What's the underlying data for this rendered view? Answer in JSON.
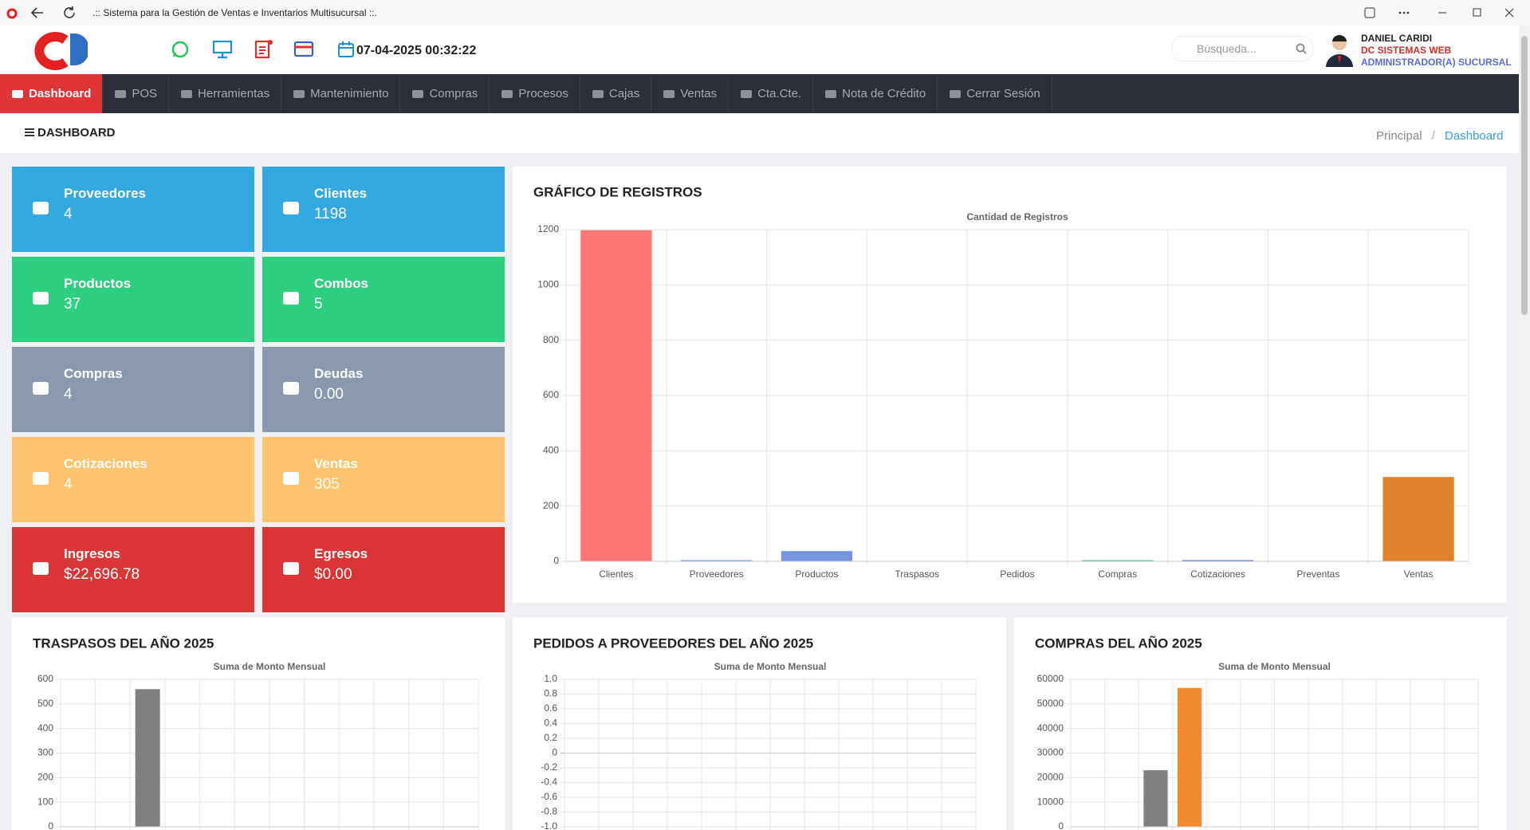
{
  "browser": {
    "title": ".:: Sistema para la Gestión de Ventas e Inventarios Multisucursal ::."
  },
  "header": {
    "datetime": "07-04-2025 00:32:22",
    "search_placeholder": "Búsqueda...",
    "user": {
      "name": "DANIEL CARIDI",
      "company": "DC SISTEMAS WEB",
      "role": "ADMINISTRADOR(A) SUCURSAL"
    }
  },
  "nav": [
    "Dashboard",
    "POS",
    "Herramientas",
    "Mantenimiento",
    "Compras",
    "Procesos",
    "Cajas",
    "Ventas",
    "Cta.Cte.",
    "Nota de Crédito",
    "Cerrar Sesión"
  ],
  "breadcrumb": {
    "page_title": "DASHBOARD",
    "items": [
      "Principal",
      "Dashboard"
    ]
  },
  "cards": [
    {
      "label": "Proveedores",
      "value": "4",
      "color": "#33a9e0"
    },
    {
      "label": "Clientes",
      "value": "1198",
      "color": "#33a9e0"
    },
    {
      "label": "Productos",
      "value": "37",
      "color": "#2ecf80"
    },
    {
      "label": "Combos",
      "value": "5",
      "color": "#2ecf80"
    },
    {
      "label": "Compras",
      "value": "4",
      "color": "#8a99ad"
    },
    {
      "label": "Deudas",
      "value": "0.00",
      "color": "#8a99ad"
    },
    {
      "label": "Cotizaciones",
      "value": "4",
      "color": "#fec46f"
    },
    {
      "label": "Ventas",
      "value": "305",
      "color": "#fec46f"
    },
    {
      "label": "Ingresos",
      "value": "$22,696.78",
      "color": "#dc3537"
    },
    {
      "label": "Egresos",
      "value": "$0.00",
      "color": "#dc3537"
    }
  ],
  "chart_data": [
    {
      "type": "bar",
      "title": "GRÁFICO DE REGISTROS",
      "subtitle": "Cantidad de Registros",
      "categories": [
        "Clientes",
        "Proveedores",
        "Productos",
        "Traspasos",
        "Pedidos",
        "Compras",
        "Cotizaciones",
        "Preventas",
        "Ventas"
      ],
      "values": [
        1198,
        4,
        37,
        1,
        0,
        4,
        4,
        1,
        305
      ],
      "colors": [
        "#ff7676",
        "#6a8fd8",
        "#7896e0",
        "#9a9a9a",
        "#d9b44a",
        "#4fb3a0",
        "#3a64b0",
        "#6fbf73",
        "#e0812b"
      ],
      "ylim": [
        0,
        1200
      ],
      "yticks": [
        0,
        200,
        400,
        600,
        800,
        1000,
        1200
      ],
      "grid": true
    },
    {
      "type": "bar",
      "title": "TRASPASOS DEL AÑO 2025",
      "subtitle": "Suma de Monto Mensual",
      "categories": [
        null,
        null,
        null,
        null,
        null,
        null,
        null,
        null,
        null,
        null,
        null,
        null
      ],
      "values": [
        0,
        0,
        560,
        0,
        0,
        0,
        0,
        0,
        0,
        0,
        0,
        0
      ],
      "color": "#808080",
      "ylim": [
        0,
        600
      ],
      "yticks": [
        0,
        100,
        200,
        300,
        400,
        500,
        600
      ],
      "grid": true
    },
    {
      "type": "bar",
      "title": "PEDIDOS A PROVEEDORES DEL AÑO 2025",
      "subtitle": "Suma de Monto Mensual",
      "categories": [
        null,
        null,
        null,
        null,
        null,
        null,
        null,
        null,
        null,
        null,
        null,
        null
      ],
      "values": [
        0,
        0,
        0,
        0,
        0,
        0,
        0,
        0,
        0,
        0,
        0,
        0
      ],
      "color": "#808080",
      "ylim": [
        -1,
        1
      ],
      "yticks": [
        {
          "value": -1,
          "label": "-1.0"
        },
        -0.8,
        -0.6,
        -0.4,
        -0.2,
        0,
        0.2,
        0.4,
        0.6,
        0.8,
        {
          "value": 1,
          "label": "1.0"
        }
      ],
      "grid": true
    },
    {
      "type": "bar",
      "title": "COMPRAS DEL AÑO 2025",
      "subtitle": "Suma de Monto Mensual",
      "categories": [
        null,
        null,
        null,
        null,
        null,
        null,
        null,
        null,
        null,
        null,
        null,
        null
      ],
      "series": [
        {
          "color": "#808080",
          "values": [
            0,
            0,
            23000,
            0,
            0,
            0,
            0,
            0,
            0,
            0,
            0,
            0
          ]
        },
        {
          "color": "#f28a30",
          "values": [
            0,
            0,
            0,
            56500,
            0,
            0,
            0,
            0,
            0,
            0,
            0,
            0
          ]
        }
      ],
      "ylim": [
        0,
        60000
      ],
      "yticks": [
        0,
        10000,
        20000,
        30000,
        40000,
        50000,
        60000
      ],
      "grid": true
    }
  ]
}
